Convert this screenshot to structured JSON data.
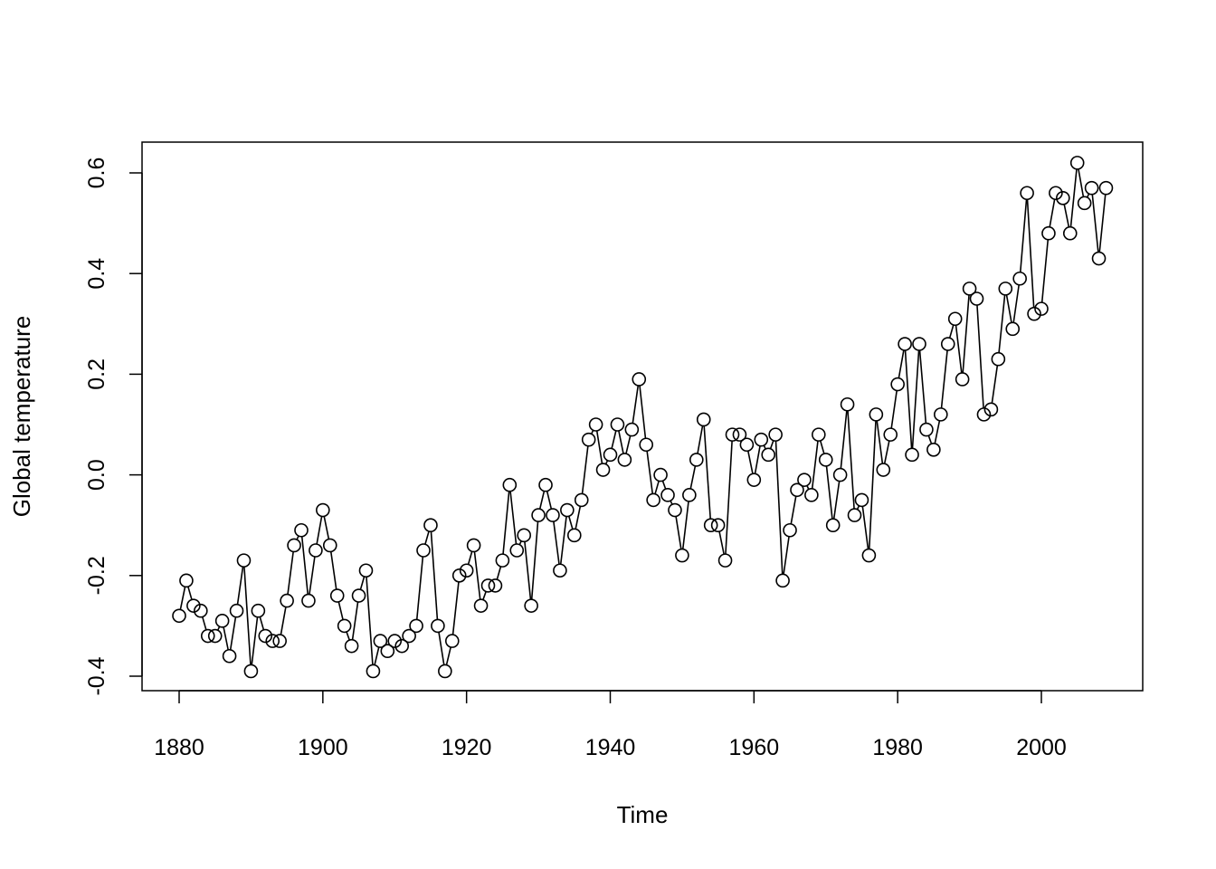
{
  "chart_data": {
    "type": "line",
    "title": "",
    "xlabel": "Time",
    "ylabel": "Global temperature",
    "xlim": [
      1876.8,
      2012.2
    ],
    "ylim": [
      -0.43,
      0.66
    ],
    "xticks": [
      1880,
      1900,
      1920,
      1940,
      1960,
      1980,
      2000
    ],
    "xtick_labels": [
      "1880",
      "1900",
      "1920",
      "1940",
      "1960",
      "1980",
      "2000"
    ],
    "yticks": [
      -0.4,
      -0.2,
      0.0,
      0.2,
      0.4,
      0.6
    ],
    "ytick_labels": [
      "-0.4",
      "-0.2",
      "0.0",
      "0.2",
      "0.4",
      "0.6"
    ],
    "grid": false,
    "markers": "open-circle",
    "x_start": 1880,
    "values": [
      -0.28,
      -0.21,
      -0.26,
      -0.27,
      -0.32,
      -0.32,
      -0.29,
      -0.36,
      -0.27,
      -0.17,
      -0.39,
      -0.27,
      -0.32,
      -0.33,
      -0.33,
      -0.25,
      -0.14,
      -0.11,
      -0.25,
      -0.15,
      -0.07,
      -0.14,
      -0.24,
      -0.3,
      -0.34,
      -0.24,
      -0.19,
      -0.39,
      -0.33,
      -0.35,
      -0.33,
      -0.34,
      -0.32,
      -0.3,
      -0.15,
      -0.1,
      -0.3,
      -0.39,
      -0.33,
      -0.2,
      -0.19,
      -0.14,
      -0.26,
      -0.22,
      -0.22,
      -0.17,
      -0.02,
      -0.15,
      -0.12,
      -0.26,
      -0.08,
      -0.02,
      -0.08,
      -0.19,
      -0.07,
      -0.12,
      -0.05,
      0.07,
      0.1,
      0.01,
      0.04,
      0.1,
      0.03,
      0.09,
      0.19,
      0.06,
      -0.05,
      0.0,
      -0.04,
      -0.07,
      -0.16,
      -0.04,
      0.03,
      0.11,
      -0.1,
      -0.1,
      -0.17,
      0.08,
      0.08,
      0.06,
      -0.01,
      0.07,
      0.04,
      0.08,
      -0.21,
      -0.11,
      -0.03,
      -0.01,
      -0.04,
      0.08,
      0.03,
      -0.1,
      0.0,
      0.14,
      -0.08,
      -0.05,
      -0.16,
      0.12,
      0.01,
      0.08,
      0.18,
      0.26,
      0.04,
      0.26,
      0.09,
      0.05,
      0.12,
      0.26,
      0.31,
      0.19,
      0.37,
      0.35,
      0.12,
      0.13,
      0.23,
      0.37,
      0.29,
      0.39,
      0.56,
      0.32,
      0.33,
      0.48,
      0.56,
      0.55,
      0.48,
      0.62,
      0.54,
      0.57,
      0.43,
      0.57
    ]
  }
}
